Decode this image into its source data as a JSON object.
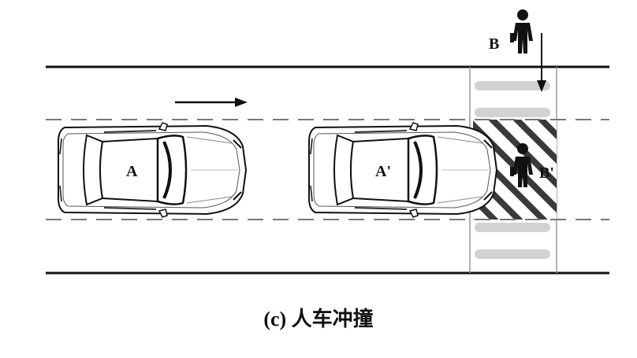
{
  "labels": {
    "car_a": "A",
    "car_a_prime": "A'",
    "ped_b": "B",
    "ped_b_prime": "B'"
  },
  "caption": "(c) 人车冲撞",
  "colors": {
    "line": "#111111",
    "crosswalk_bar": "#d4d4d4",
    "hatch": "#333333"
  },
  "icons": [
    "arrow-right-icon",
    "arrow-down-icon",
    "pedestrian-icon",
    "car-icon"
  ]
}
